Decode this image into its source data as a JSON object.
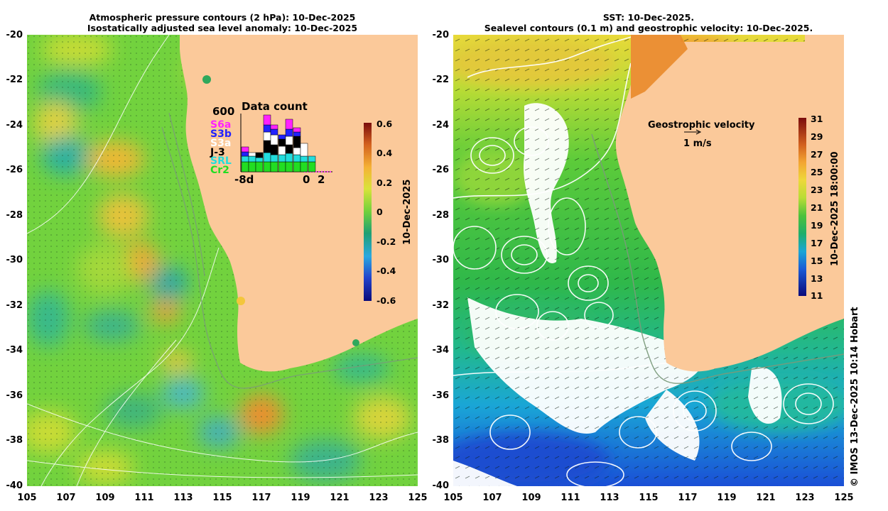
{
  "left_panel": {
    "title_line1": "Atmospheric pressure contours (2 hPa): 10-Dec-2025",
    "title_line2": "Isostatically adjusted sea level anomaly: 10-Dec-2025",
    "colorbar_label": "10-Dec-2025",
    "colorbar_ticks": [
      "0.6",
      "0.4",
      "0.2",
      "0",
      "-0.2",
      "-0.4",
      "-0.6"
    ]
  },
  "right_panel": {
    "title_line1": "SST: 10-Dec-2025.",
    "title_line2": "Sealevel contours (0.1 m) and geostrophic velocity: 10-Dec-2025.",
    "colorbar_label": "10-Dec-2025 18:00:00",
    "colorbar_ticks": [
      "31",
      "29",
      "27",
      "25",
      "23",
      "21",
      "19",
      "17",
      "15",
      "13",
      "11"
    ],
    "velocity_legend_title": "Geostrophic velocity",
    "velocity_legend_scale": "1 m/s"
  },
  "axes": {
    "y_ticks": [
      "-20",
      "-22",
      "-24",
      "-26",
      "-28",
      "-30",
      "-32",
      "-34",
      "-36",
      "-38",
      "-40"
    ],
    "x_ticks": [
      "105",
      "107",
      "109",
      "111",
      "113",
      "115",
      "117",
      "119",
      "121",
      "123",
      "125"
    ]
  },
  "data_count": {
    "title": "Data count",
    "max_label": "600",
    "start_label": "-8d",
    "zero_label": "0",
    "end_label": "2",
    "missions": [
      {
        "name": "S6a",
        "color": "#ff22ff"
      },
      {
        "name": "S3b",
        "color": "#2222ff"
      },
      {
        "name": "S3a",
        "color": "#ffffff"
      },
      {
        "name": "J-3",
        "color": "#000000"
      },
      {
        "name": "SRL",
        "color": "#22dddd"
      },
      {
        "name": "Cr2",
        "color": "#22dd22"
      }
    ]
  },
  "credit": "© IMOS 13-Dec-2025 10:14 Hobart",
  "colors": {
    "land": "#fbc99a",
    "sla_neutral": "#6fd03c",
    "sla_positive": "#f3b233",
    "sla_negative": "#2fa99a"
  }
}
